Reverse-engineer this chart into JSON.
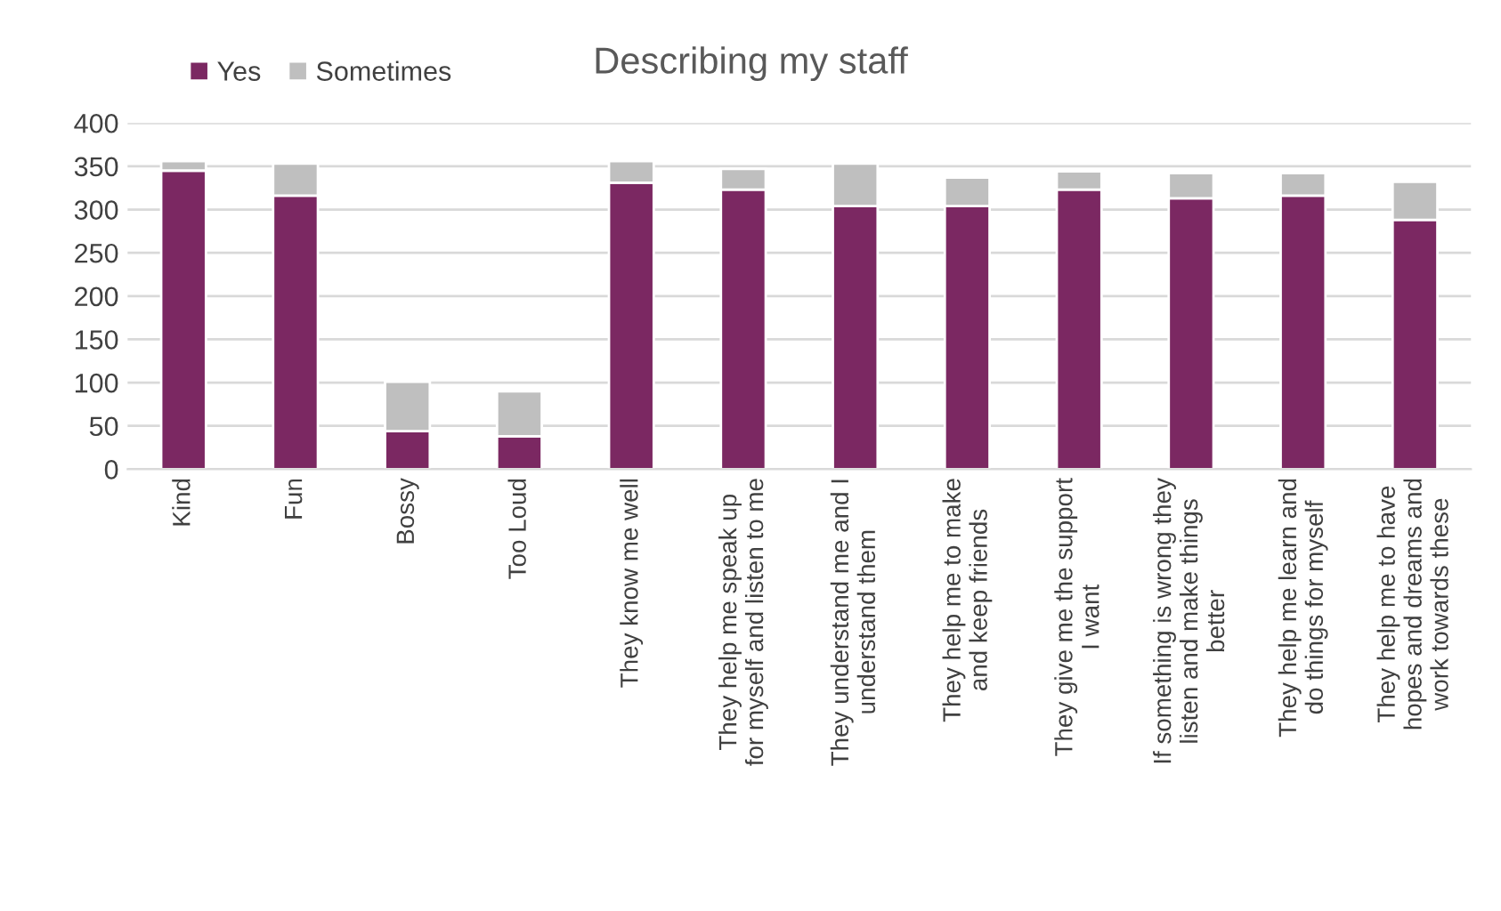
{
  "chart_data": {
    "type": "bar",
    "title": "Describing my staff",
    "stacked": true,
    "categories": [
      "Kind",
      "Fun",
      "Bossy",
      "Too Loud",
      "They know me well",
      "They help me speak up\nfor myself and listen to me",
      "They understand me and I\nunderstand them",
      "They help me to make\nand keep friends",
      "They give me the support\nI want",
      "If something is wrong they\nlisten and make things\nbetter",
      "They help me learn and\ndo things for myself",
      "They help me to have\nhopes and dreams and\nwork towards these"
    ],
    "series": [
      {
        "name": "Yes",
        "color": "#7b2862",
        "values": [
          345,
          316,
          44,
          38,
          331,
          323,
          304,
          304,
          323,
          313,
          316,
          288
        ]
      },
      {
        "name": "Sometimes",
        "color": "#bfbfbf",
        "values": [
          11,
          37,
          57,
          52,
          25,
          24,
          49,
          33,
          21,
          29,
          26,
          44
        ]
      }
    ],
    "ylim": [
      0,
      400
    ],
    "yticks": [
      0,
      50,
      100,
      150,
      200,
      250,
      300,
      350,
      400
    ],
    "grid": "y",
    "legend": "top left"
  }
}
